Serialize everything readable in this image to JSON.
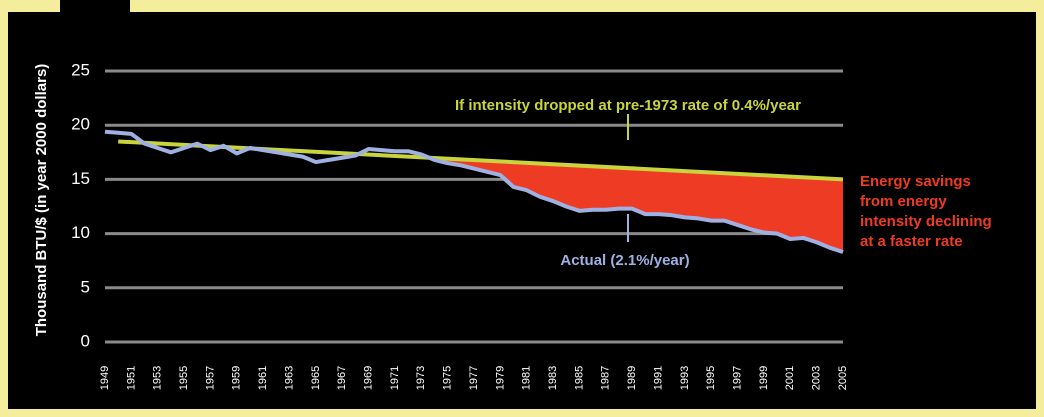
{
  "chart_data": {
    "type": "line",
    "ylabel": "Thousand BTU/$ (in year 2000 dollars)",
    "xlim": [
      1949,
      2005
    ],
    "xticks": [
      1949,
      1951,
      1953,
      1955,
      1957,
      1959,
      1961,
      1963,
      1965,
      1967,
      1969,
      1971,
      1973,
      1975,
      1977,
      1979,
      1981,
      1983,
      1985,
      1987,
      1989,
      1991,
      1993,
      1995,
      1997,
      1999,
      2001,
      2003,
      2005
    ],
    "ylim": [
      0,
      25
    ],
    "yticks": [
      0,
      5,
      10,
      15,
      20,
      25
    ],
    "grid": true,
    "series": [
      {
        "name": "Actual (2.1%/year)",
        "color": "#9fb1e2",
        "x": [
          1949,
          1950,
          1951,
          1952,
          1953,
          1954,
          1955,
          1956,
          1957,
          1958,
          1959,
          1960,
          1961,
          1962,
          1963,
          1964,
          1965,
          1966,
          1967,
          1968,
          1969,
          1970,
          1971,
          1972,
          1973,
          1974,
          1975,
          1976,
          1977,
          1978,
          1979,
          1980,
          1981,
          1982,
          1983,
          1984,
          1985,
          1986,
          1987,
          1988,
          1989,
          1990,
          1991,
          1992,
          1993,
          1994,
          1995,
          1996,
          1997,
          1998,
          1999,
          2000,
          2001,
          2002,
          2003,
          2004,
          2005
        ],
        "values": [
          19.4,
          19.3,
          19.2,
          18.3,
          17.9,
          17.5,
          17.9,
          18.3,
          17.7,
          18.1,
          17.4,
          17.9,
          17.7,
          17.5,
          17.3,
          17.1,
          16.6,
          16.8,
          17.0,
          17.2,
          17.8,
          17.7,
          17.6,
          17.6,
          17.3,
          16.8,
          16.5,
          16.3,
          16.0,
          15.7,
          15.4,
          14.3,
          14.0,
          13.4,
          13.0,
          12.5,
          12.1,
          12.2,
          12.2,
          12.3,
          12.3,
          11.8,
          11.8,
          11.7,
          11.5,
          11.4,
          11.2,
          11.2,
          10.8,
          10.4,
          10.1,
          10.0,
          9.5,
          9.6,
          9.2,
          8.7,
          8.3
        ]
      },
      {
        "name": "If intensity dropped at pre-1973 rate of 0.4%/year",
        "color": "#c9d43d",
        "x": [
          1950,
          2005
        ],
        "values": [
          18.5,
          15.0
        ]
      }
    ],
    "savings_color": "#ee3b24",
    "savings_label": [
      "Energy savings",
      "from energy",
      "intensity declining",
      "at a faster rate"
    ]
  }
}
